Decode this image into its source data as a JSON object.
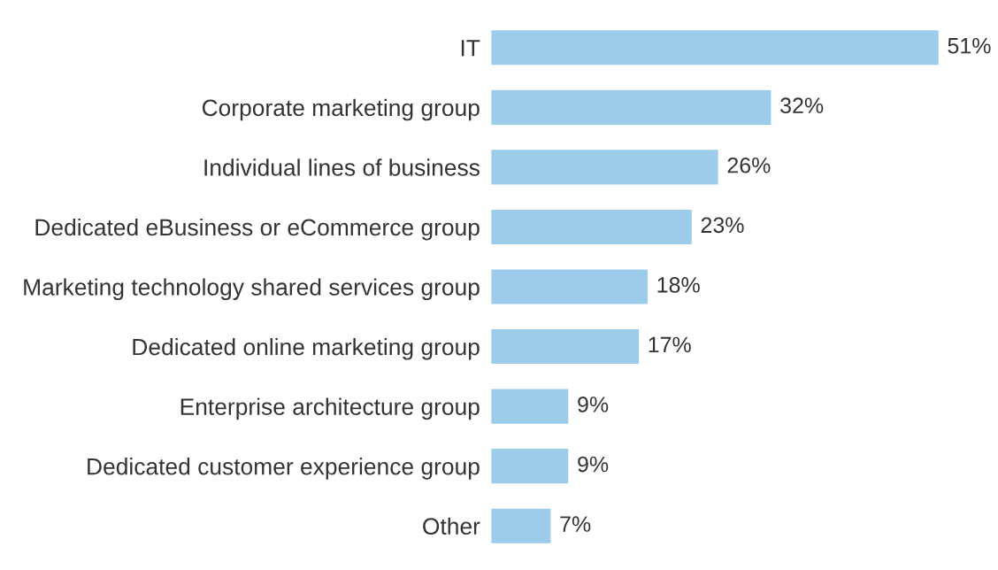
{
  "chart_data": {
    "type": "bar",
    "orientation": "horizontal",
    "categories": [
      "IT",
      "Corporate marketing group",
      "Individual lines of business",
      "Dedicated eBusiness or eCommerce group",
      "Marketing technology shared services group",
      "Dedicated online marketing group",
      "Enterprise architecture group",
      "Dedicated customer experience group",
      "Other"
    ],
    "values": [
      51,
      32,
      26,
      23,
      18,
      17,
      9,
      9,
      7
    ],
    "value_labels": [
      "51%",
      "32%",
      "26%",
      "23%",
      "18%",
      "17%",
      "9%",
      "9%",
      "7%"
    ],
    "color": "#9dcbea",
    "grid": false,
    "legend": false
  }
}
